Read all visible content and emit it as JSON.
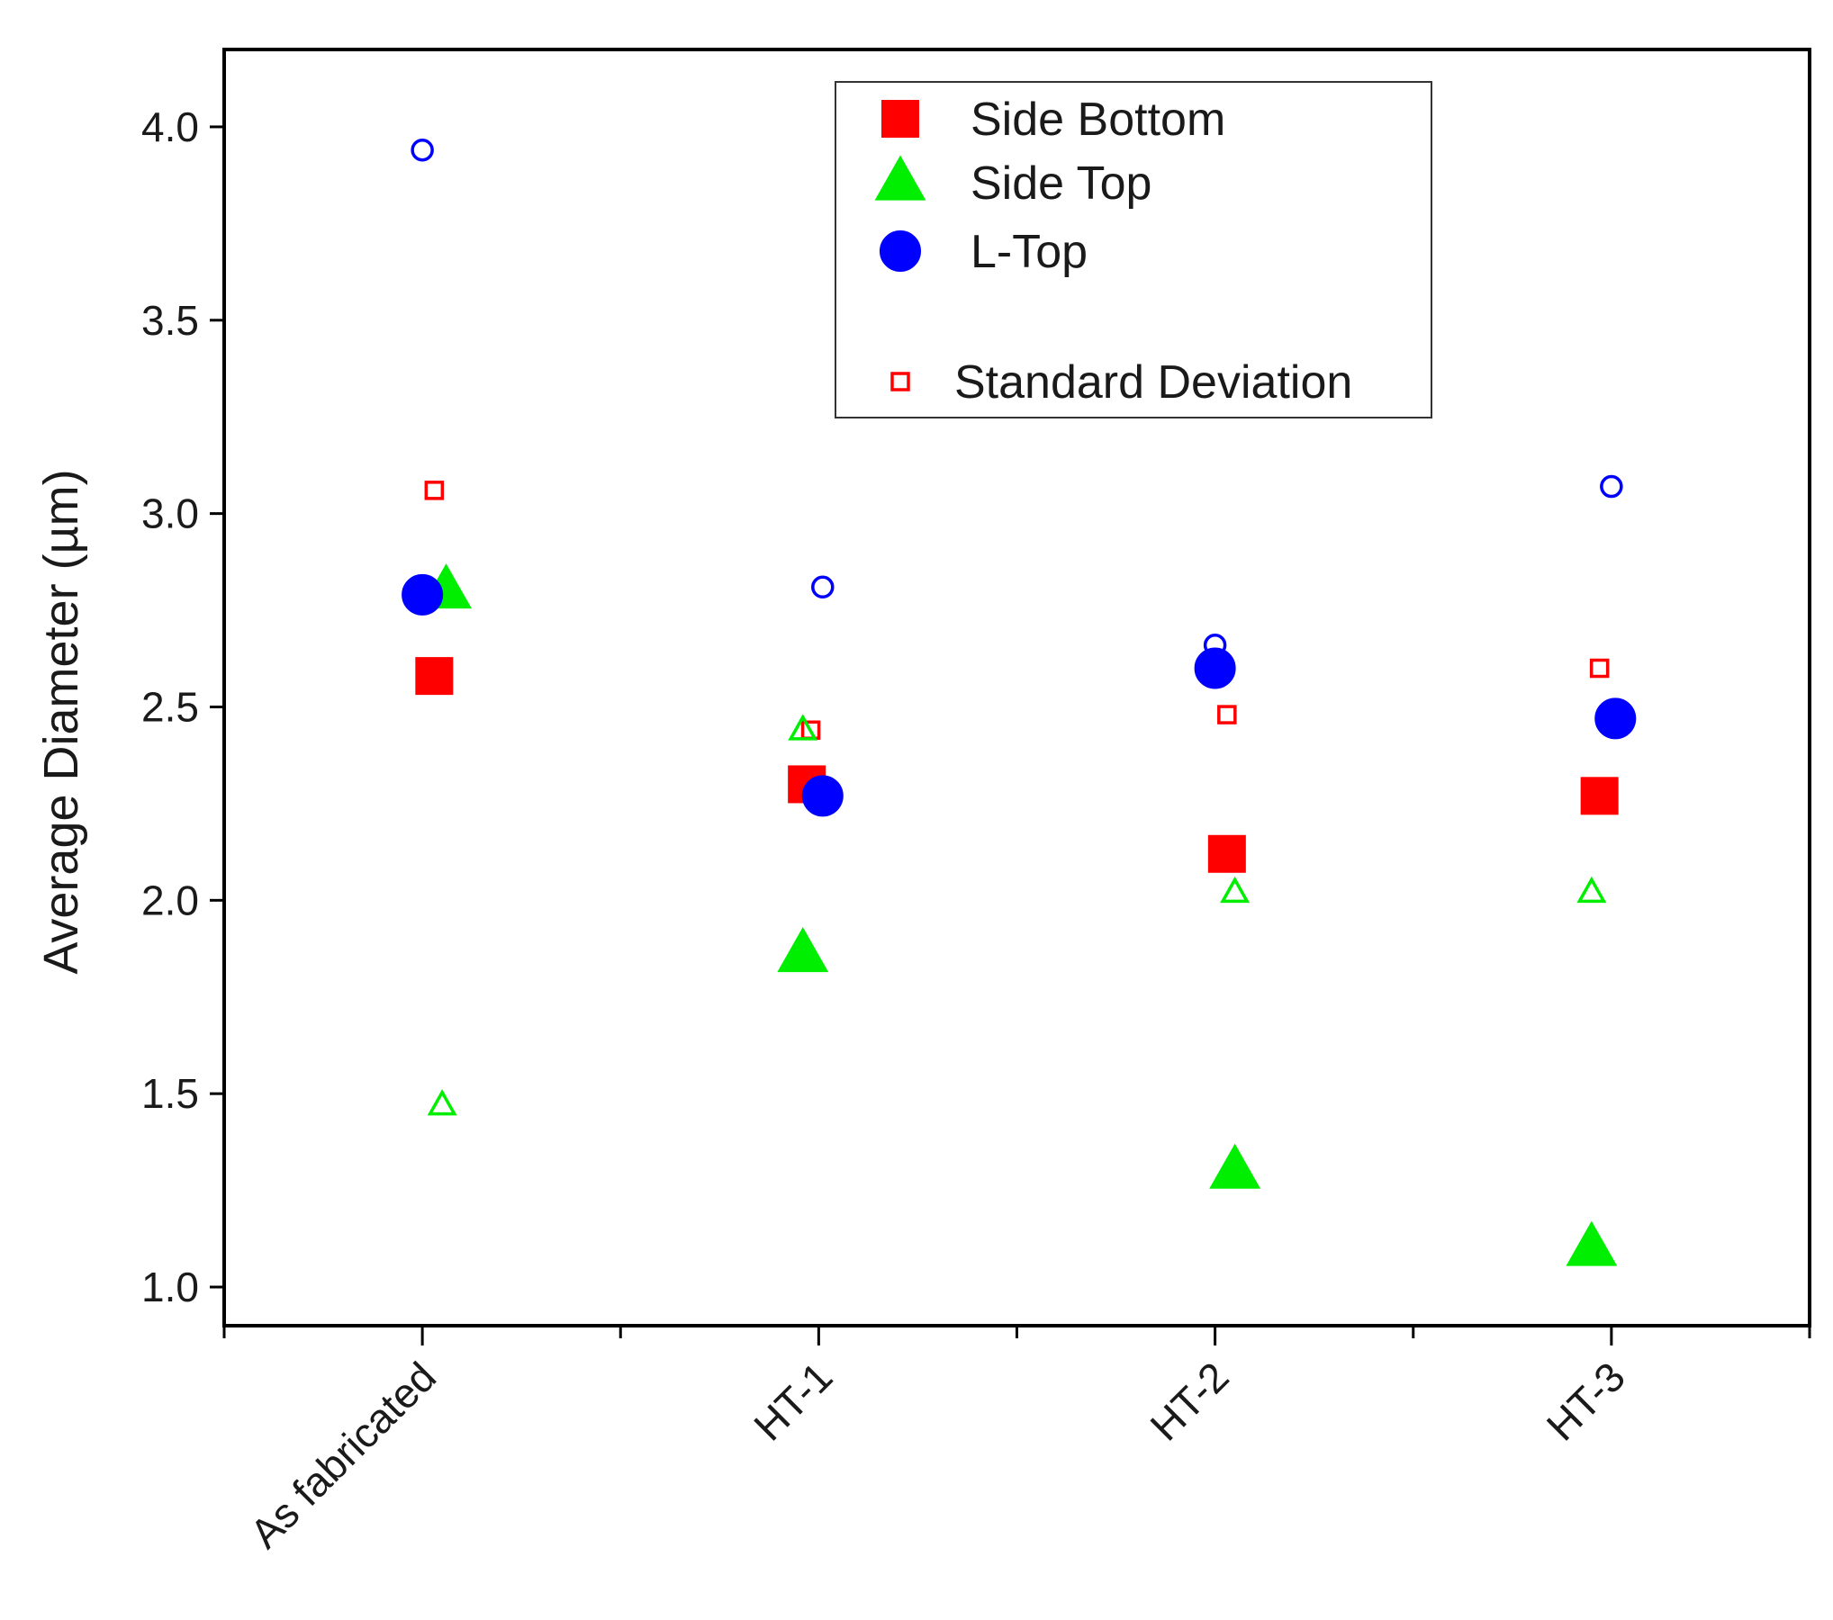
{
  "chart_data": {
    "type": "scatter",
    "title": "",
    "xlabel": "",
    "ylabel": "Average Diameter (µm)",
    "categories": [
      "As fabricated",
      "HT-1",
      "HT-2",
      "HT-3"
    ],
    "ylim": [
      0.9,
      4.2
    ],
    "yticks": [
      "1.0",
      "1.5",
      "2.0",
      "2.5",
      "3.0",
      "3.5",
      "4.0"
    ],
    "grid": false,
    "legend_position": "top-right",
    "series": [
      {
        "name": "Side Bottom",
        "marker": "square",
        "filled": true,
        "color": "#ff0000",
        "values": [
          2.58,
          2.3,
          2.12,
          2.27
        ],
        "offsets": [
          0.03,
          -0.03,
          0.03,
          -0.03
        ]
      },
      {
        "name": "Side Top",
        "marker": "triangle",
        "filled": true,
        "color": "#00ee00",
        "values": [
          2.8,
          1.86,
          1.3,
          1.1
        ],
        "offsets": [
          0.06,
          -0.04,
          0.05,
          -0.05
        ]
      },
      {
        "name": "L-Top",
        "marker": "circle",
        "filled": true,
        "color": "#0000ff",
        "values": [
          2.79,
          2.27,
          2.6,
          2.47
        ],
        "offsets": [
          0.0,
          0.01,
          0.0,
          0.01
        ]
      },
      {
        "name": "Side Bottom std",
        "marker": "square",
        "filled": false,
        "color": "#ff0000",
        "values": [
          3.06,
          2.44,
          2.48,
          2.6
        ],
        "offsets": [
          0.03,
          -0.02,
          0.03,
          -0.03
        ]
      },
      {
        "name": "Side Top std",
        "marker": "triangle",
        "filled": false,
        "color": "#00ee00",
        "values": [
          1.47,
          2.44,
          2.02,
          2.02
        ],
        "offsets": [
          0.05,
          -0.04,
          0.05,
          -0.05
        ]
      },
      {
        "name": "L-Top std",
        "marker": "circle",
        "filled": false,
        "color": "#0000ff",
        "values": [
          3.94,
          2.81,
          2.66,
          3.07
        ],
        "offsets": [
          0.0,
          0.01,
          0.0,
          0.0
        ]
      }
    ],
    "legend": [
      {
        "label": "Side Bottom",
        "marker": "square",
        "filled": true,
        "color": "#ff0000"
      },
      {
        "label": "Side Top",
        "marker": "triangle",
        "filled": true,
        "color": "#00ee00"
      },
      {
        "label": "L-Top",
        "marker": "circle",
        "filled": true,
        "color": "#0000ff"
      },
      {
        "label": "Standard Deviation",
        "marker": "square",
        "filled": false,
        "color": "#ff0000"
      }
    ]
  }
}
